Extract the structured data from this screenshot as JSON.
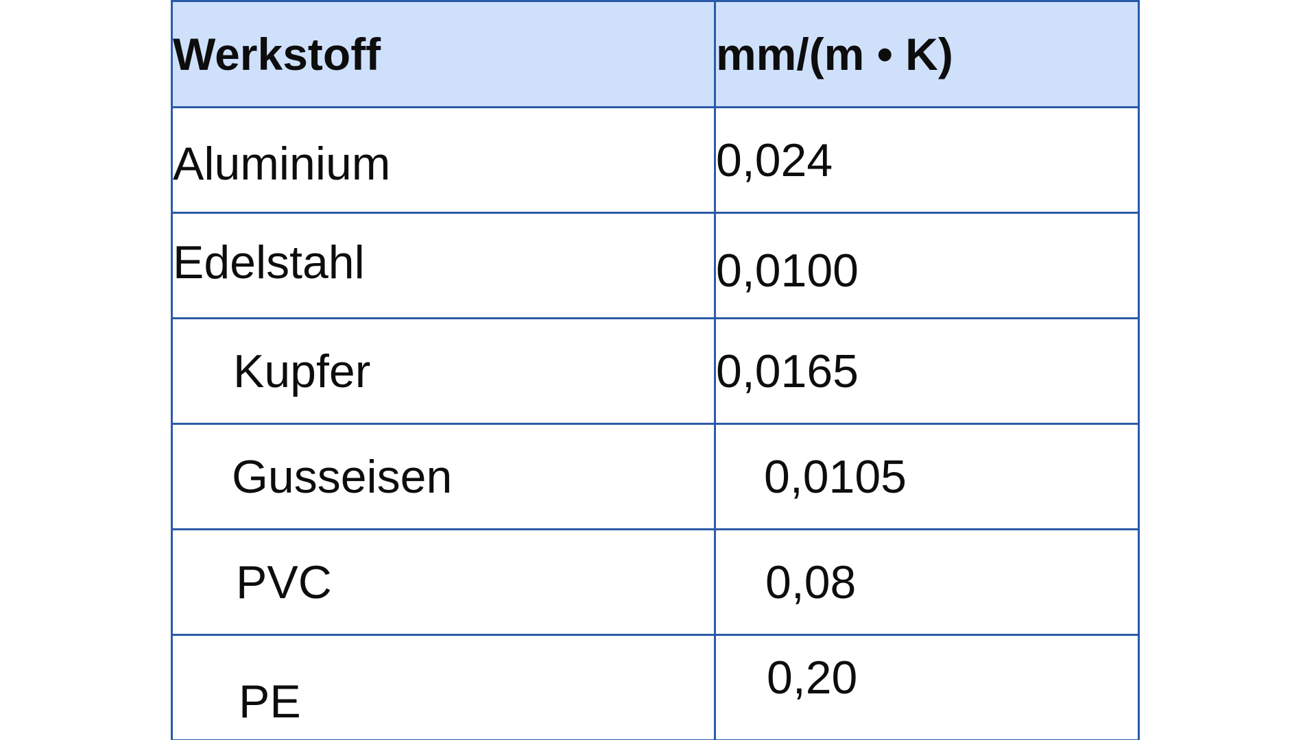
{
  "table": {
    "headers": {
      "material": "Werkstoff",
      "unit": "mm/(m • K)"
    },
    "rows": [
      {
        "material": "Aluminium",
        "value": "0,024"
      },
      {
        "material": "Edelstahl",
        "value": "0,0100"
      },
      {
        "material": "Kupfer",
        "value": "0,0165"
      },
      {
        "material": "Gusseisen",
        "value": "0,0105"
      },
      {
        "material": "PVC",
        "value": "0,08"
      },
      {
        "material": "PE",
        "value": "0,20"
      }
    ]
  },
  "colors": {
    "header_background": "#cfe0fb",
    "border": "#2a5aa8",
    "text": "#0d0d0d"
  }
}
